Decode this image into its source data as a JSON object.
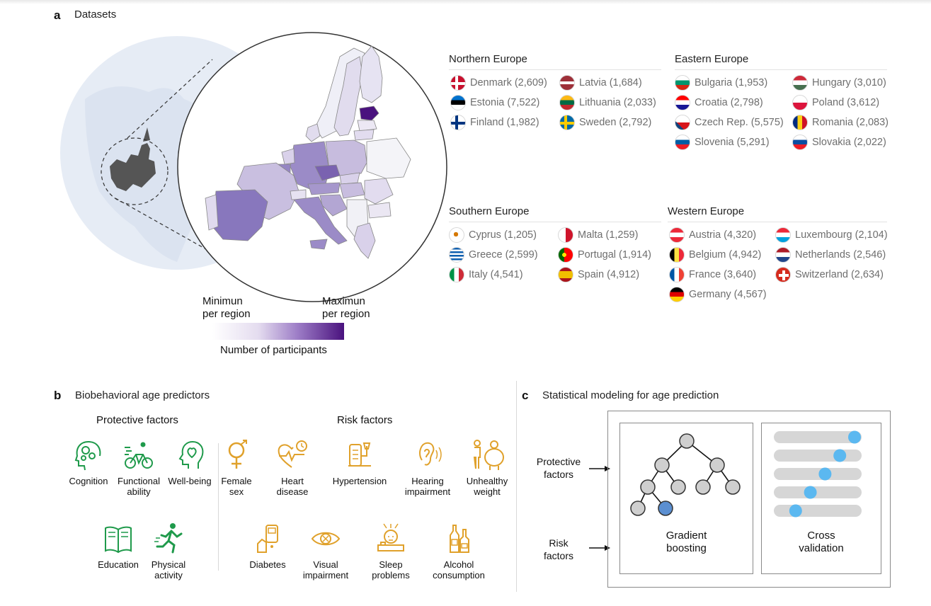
{
  "panel_a": {
    "letter": "a",
    "title": "Datasets",
    "regions": [
      {
        "name": "Northern Europe",
        "countries": [
          {
            "label": "Denmark (2,609)",
            "flag": "denmark-flag"
          },
          {
            "label": "Estonia (7,522)",
            "flag": "estonia-flag"
          },
          {
            "label": "Finland (1,982)",
            "flag": "finland-flag"
          },
          {
            "label": "Latvia (1,684)",
            "flag": "latvia-flag"
          },
          {
            "label": "Lithuania (2,033)",
            "flag": "lithuania-flag"
          },
          {
            "label": "Sweden (2,792)",
            "flag": "sweden-flag"
          }
        ]
      },
      {
        "name": "Eastern Europe",
        "countries": [
          {
            "label": "Bulgaria (1,953)",
            "flag": "bulgaria-flag"
          },
          {
            "label": "Croatia (2,798)",
            "flag": "croatia-flag"
          },
          {
            "label": "Czech Rep. (5,575)",
            "flag": "czech-flag"
          },
          {
            "label": "Slovenia (5,291)",
            "flag": "slovenia-flag"
          },
          {
            "label": "Hungary (3,010)",
            "flag": "hungary-flag"
          },
          {
            "label": "Poland (3,612)",
            "flag": "poland-flag"
          },
          {
            "label": "Romania (2,083)",
            "flag": "romania-flag"
          },
          {
            "label": "Slovakia (2,022)",
            "flag": "slovakia-flag"
          }
        ]
      },
      {
        "name": "Southern Europe",
        "countries": [
          {
            "label": "Cyprus (1,205)",
            "flag": "cyprus-flag"
          },
          {
            "label": "Greece (2,599)",
            "flag": "greece-flag"
          },
          {
            "label": "Italy (4,541)",
            "flag": "italy-flag"
          },
          {
            "label": "Malta (1,259)",
            "flag": "malta-flag"
          },
          {
            "label": "Portugal (1,914)",
            "flag": "portugal-flag"
          },
          {
            "label": "Spain (4,912)",
            "flag": "spain-flag"
          }
        ]
      },
      {
        "name": "Western Europe",
        "countries": [
          {
            "label": "Austria (4,320)",
            "flag": "austria-flag"
          },
          {
            "label": "Belgium (4,942)",
            "flag": "belgium-flag"
          },
          {
            "label": "France (3,640)",
            "flag": "france-flag"
          },
          {
            "label": "Germany (4,567)",
            "flag": "germany-flag"
          },
          {
            "label": "Luxembourg (2,104)",
            "flag": "luxembourg-flag"
          },
          {
            "label": "Netherlands (2,546)",
            "flag": "netherlands-flag"
          },
          {
            "label": "Switzerland (2,634)",
            "flag": "switzerland-flag"
          }
        ]
      }
    ],
    "legend": {
      "min_line1": "Minimun",
      "min_line2": "per region",
      "max_line1": "Maximun",
      "max_line2": "per region",
      "caption": "Number of participants",
      "color_min": "#ffffff",
      "color_max": "#4a127e"
    }
  },
  "panel_b": {
    "letter": "b",
    "title": "Biobehavioral age predictors",
    "protective_title": "Protective factors",
    "risk_title": "Risk factors",
    "protective_color": "#1f9a4b",
    "risk_color": "#e0a12b",
    "protective": [
      {
        "line1": "Cognition",
        "line2": "",
        "icon": "brain-gears-icon"
      },
      {
        "line1": "Functional",
        "line2": "ability",
        "icon": "cyclist-icon"
      },
      {
        "line1": "Well-being",
        "line2": "",
        "icon": "head-heart-icon"
      },
      {
        "line1": "Education",
        "line2": "",
        "icon": "open-book-icon"
      },
      {
        "line1": "Physical",
        "line2": "activity",
        "icon": "runner-icon"
      }
    ],
    "risk": [
      {
        "line1": "Female",
        "line2": "sex",
        "icon": "female-symbol-icon"
      },
      {
        "line1": "Heart",
        "line2": "disease",
        "icon": "heart-pulse-icon"
      },
      {
        "line1": "Hypertension",
        "line2": "",
        "icon": "blood-pressure-icon"
      },
      {
        "line1": "Hearing",
        "line2": "impairment",
        "icon": "ear-icon"
      },
      {
        "line1": "Unhealthy",
        "line2": "weight",
        "icon": "weight-icon"
      },
      {
        "line1": "Diabetes",
        "line2": "",
        "icon": "glucose-meter-icon"
      },
      {
        "line1": "Visual",
        "line2": "impairment",
        "icon": "eye-icon"
      },
      {
        "line1": "Sleep",
        "line2": "problems",
        "icon": "sleep-icon"
      },
      {
        "line1": "Alcohol",
        "line2": "consumption",
        "icon": "bottles-icon"
      }
    ]
  },
  "panel_c": {
    "letter": "c",
    "title": "Statistical modeling for age prediction",
    "protective_line1": "Protective",
    "protective_line2": "factors",
    "risk_line1": "Risk",
    "risk_line2": "factors",
    "gb_line1": "Gradient",
    "gb_line2": "boosting",
    "cv_line1": "Cross",
    "cv_line2": "validation",
    "node_color": "#cfcfcf",
    "highlight_node_color": "#5b8fd1",
    "cv_dot_color": "#5bb8f0",
    "cv_folds": [
      1.0,
      0.8,
      0.6,
      0.4,
      0.2
    ]
  }
}
